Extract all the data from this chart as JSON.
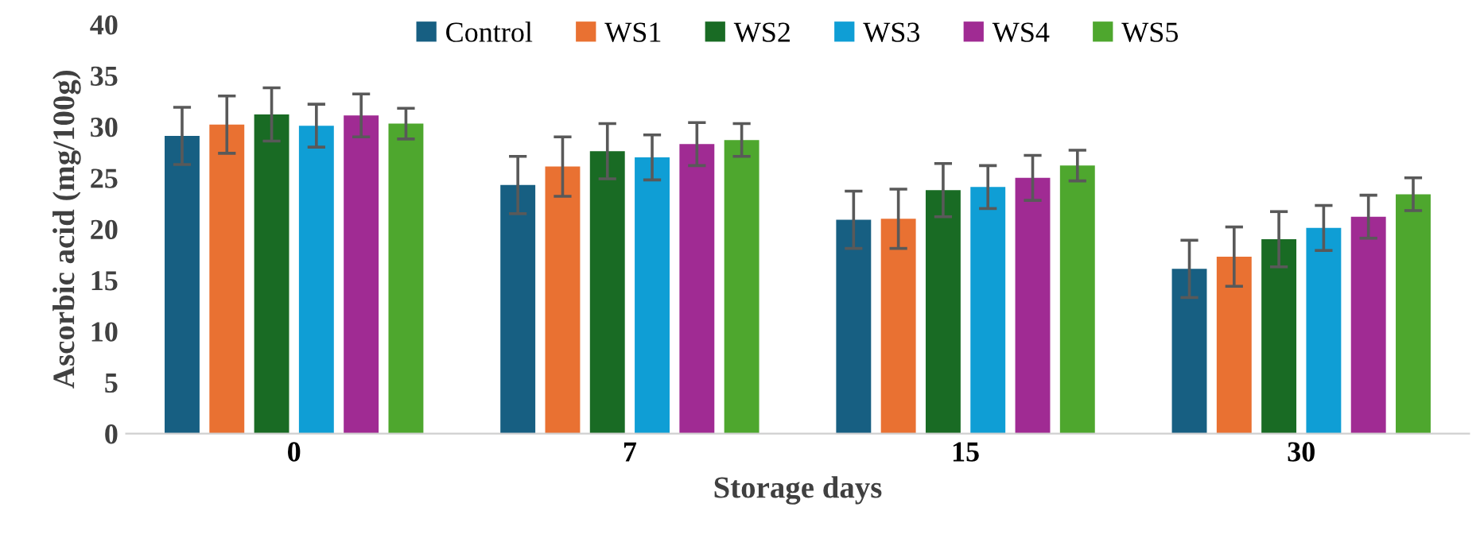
{
  "chart_data": {
    "type": "bar",
    "xlabel": "Storage days",
    "ylabel": "Ascorbic acid (mg/100g)",
    "categories": [
      "0",
      "7",
      "15",
      "30"
    ],
    "ylim": [
      0,
      40
    ],
    "yticks": [
      0,
      5,
      10,
      15,
      20,
      25,
      30,
      35,
      40
    ],
    "grid": false,
    "legend": "top",
    "series": [
      {
        "name": "Control",
        "color": "#175f82",
        "values": [
          29.1,
          24.3,
          20.9,
          16.1
        ],
        "errors": [
          2.8,
          2.8,
          2.8,
          2.8
        ]
      },
      {
        "name": "WS1",
        "color": "#e97132",
        "values": [
          30.2,
          26.1,
          21.0,
          17.3
        ],
        "errors": [
          2.8,
          2.9,
          2.9,
          2.9
        ]
      },
      {
        "name": "WS2",
        "color": "#196b24",
        "values": [
          31.2,
          27.6,
          23.8,
          19.0
        ],
        "errors": [
          2.6,
          2.7,
          2.6,
          2.7
        ]
      },
      {
        "name": "WS3",
        "color": "#0f9ed5",
        "values": [
          30.1,
          27.0,
          24.1,
          20.1
        ],
        "errors": [
          2.1,
          2.2,
          2.1,
          2.2
        ]
      },
      {
        "name": "WS4",
        "color": "#a02b93",
        "values": [
          31.1,
          28.3,
          25.0,
          21.2
        ],
        "errors": [
          2.1,
          2.1,
          2.2,
          2.1
        ]
      },
      {
        "name": "WS5",
        "color": "#4ea72e",
        "values": [
          30.3,
          28.7,
          26.2,
          23.4
        ],
        "errors": [
          1.5,
          1.6,
          1.5,
          1.6
        ]
      }
    ]
  }
}
